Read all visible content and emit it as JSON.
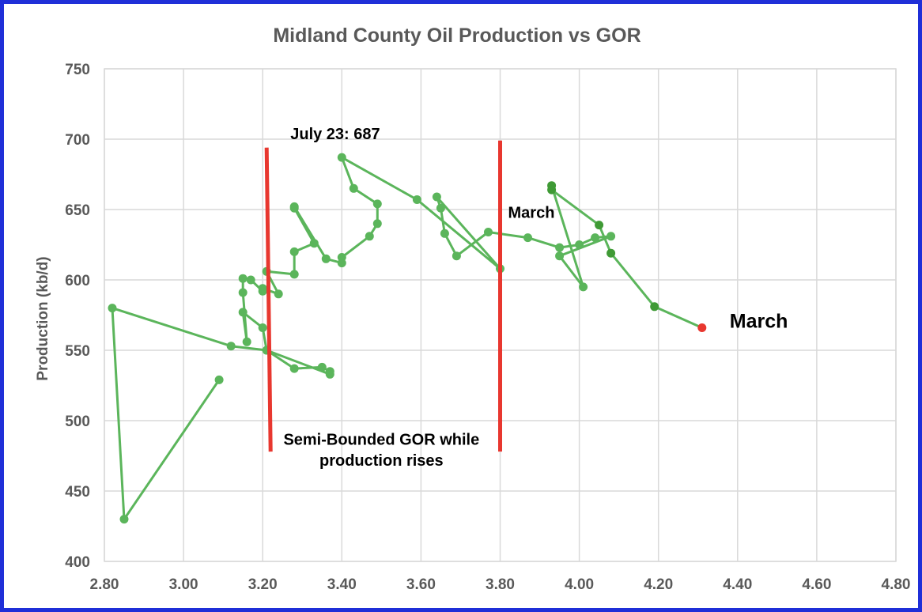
{
  "chart_data": {
    "type": "scatter",
    "title": "Midland County Oil Production vs GOR",
    "xlabel": "",
    "ylabel": "Production (kb/d)",
    "xlim": [
      2.8,
      4.8
    ],
    "ylim": [
      400,
      750
    ],
    "x_ticks": [
      "2.80",
      "3.00",
      "3.20",
      "3.40",
      "3.60",
      "3.80",
      "4.00",
      "4.20",
      "4.40",
      "4.60",
      "4.80"
    ],
    "y_ticks": [
      "400",
      "450",
      "500",
      "550",
      "600",
      "650",
      "700",
      "750"
    ],
    "grid": true,
    "line_color": "#5bb55b",
    "marker_color": "#5bb55b",
    "marker_color_recent": "#3f9a35",
    "last_point_color": "#e8372f",
    "vline_color": "#e8372f",
    "series": [
      {
        "points": [
          [
            3.09,
            529
          ],
          [
            2.85,
            430
          ],
          [
            2.82,
            580
          ],
          [
            3.12,
            553
          ],
          [
            3.21,
            550
          ],
          [
            3.28,
            537
          ],
          [
            3.35,
            538
          ],
          [
            3.37,
            535
          ],
          [
            3.37,
            533
          ],
          [
            3.21,
            550
          ],
          [
            3.2,
            566
          ],
          [
            3.15,
            577
          ],
          [
            3.16,
            556
          ],
          [
            3.15,
            591
          ],
          [
            3.15,
            601
          ],
          [
            3.17,
            600
          ],
          [
            3.2,
            592
          ],
          [
            3.2,
            594
          ],
          [
            3.24,
            590
          ],
          [
            3.21,
            606
          ],
          [
            3.28,
            604
          ],
          [
            3.28,
            620
          ],
          [
            3.33,
            626
          ],
          [
            3.28,
            651
          ],
          [
            3.28,
            652
          ],
          [
            3.36,
            615
          ],
          [
            3.4,
            612
          ],
          [
            3.4,
            616
          ],
          [
            3.47,
            631
          ],
          [
            3.49,
            640
          ],
          [
            3.49,
            654
          ],
          [
            3.43,
            665
          ],
          [
            3.4,
            687
          ],
          [
            3.59,
            657
          ],
          [
            3.8,
            608
          ],
          [
            3.64,
            659
          ],
          [
            3.65,
            651
          ],
          [
            3.66,
            633
          ],
          [
            3.69,
            617
          ],
          [
            3.77,
            634
          ],
          [
            3.87,
            630
          ],
          [
            3.95,
            623
          ],
          [
            4.0,
            625
          ],
          [
            4.04,
            630
          ],
          [
            4.08,
            631
          ],
          [
            3.95,
            617
          ],
          [
            4.01,
            595
          ]
        ]
      },
      {
        "points": [
          [
            3.93,
            667
          ],
          [
            3.93,
            664
          ],
          [
            4.05,
            639
          ],
          [
            4.08,
            619
          ],
          [
            4.19,
            581
          ],
          [
            4.31,
            566
          ]
        ]
      }
    ],
    "vertical_lines": [
      {
        "x1": 3.21,
        "y1": 694,
        "x2": 3.22,
        "y2": 478
      },
      {
        "x1": 3.8,
        "y1": 699,
        "x2": 3.8,
        "y2": 478
      }
    ],
    "annotations": {
      "peak": {
        "text": "July 23: 687",
        "x": 3.27,
        "y": 700
      },
      "march_mid": {
        "text": "March",
        "x": 3.82,
        "y": 644
      },
      "march_end": {
        "text": "March",
        "x": 4.38,
        "y": 566
      },
      "note_line1": {
        "text": "Semi-Bounded GOR while",
        "x": 3.5,
        "y": 483
      },
      "note_line2": {
        "text": "production rises",
        "x": 3.5,
        "y": 468
      }
    }
  }
}
